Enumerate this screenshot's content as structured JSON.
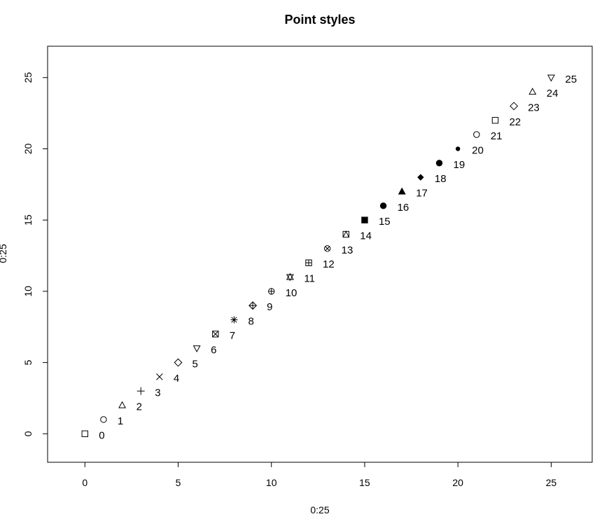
{
  "chart_data": {
    "type": "scatter",
    "title": "Point styles",
    "xlabel": "0:25",
    "ylabel": "0:25",
    "xlim": [
      -2,
      27.2
    ],
    "ylim": [
      -2,
      27.2
    ],
    "xticks": [
      0,
      5,
      10,
      15,
      20,
      25
    ],
    "yticks": [
      0,
      5,
      10,
      15,
      20,
      25
    ],
    "grid": false,
    "points": [
      {
        "x": 0,
        "y": 0,
        "label": "0",
        "pch": 0
      },
      {
        "x": 1,
        "y": 1,
        "label": "1",
        "pch": 1
      },
      {
        "x": 2,
        "y": 2,
        "label": "2",
        "pch": 2
      },
      {
        "x": 3,
        "y": 3,
        "label": "3",
        "pch": 3
      },
      {
        "x": 4,
        "y": 4,
        "label": "4",
        "pch": 4
      },
      {
        "x": 5,
        "y": 5,
        "label": "5",
        "pch": 5
      },
      {
        "x": 6,
        "y": 6,
        "label": "6",
        "pch": 6
      },
      {
        "x": 7,
        "y": 7,
        "label": "7",
        "pch": 7
      },
      {
        "x": 8,
        "y": 8,
        "label": "8",
        "pch": 8
      },
      {
        "x": 9,
        "y": 9,
        "label": "9",
        "pch": 9
      },
      {
        "x": 10,
        "y": 10,
        "label": "10",
        "pch": 10
      },
      {
        "x": 11,
        "y": 11,
        "label": "11",
        "pch": 11
      },
      {
        "x": 12,
        "y": 12,
        "label": "12",
        "pch": 12
      },
      {
        "x": 13,
        "y": 13,
        "label": "13",
        "pch": 13
      },
      {
        "x": 14,
        "y": 14,
        "label": "14",
        "pch": 14
      },
      {
        "x": 15,
        "y": 15,
        "label": "15",
        "pch": 15
      },
      {
        "x": 16,
        "y": 16,
        "label": "16",
        "pch": 16
      },
      {
        "x": 17,
        "y": 17,
        "label": "17",
        "pch": 17
      },
      {
        "x": 18,
        "y": 18,
        "label": "18",
        "pch": 18
      },
      {
        "x": 19,
        "y": 19,
        "label": "19",
        "pch": 19
      },
      {
        "x": 20,
        "y": 20,
        "label": "20",
        "pch": 20
      },
      {
        "x": 21,
        "y": 21,
        "label": "21",
        "pch": 21
      },
      {
        "x": 22,
        "y": 22,
        "label": "22",
        "pch": 22
      },
      {
        "x": 23,
        "y": 23,
        "label": "23",
        "pch": 23
      },
      {
        "x": 24,
        "y": 24,
        "label": "24",
        "pch": 24
      },
      {
        "x": 25,
        "y": 25,
        "label": "25",
        "pch": 25
      }
    ],
    "color": "#000000"
  }
}
